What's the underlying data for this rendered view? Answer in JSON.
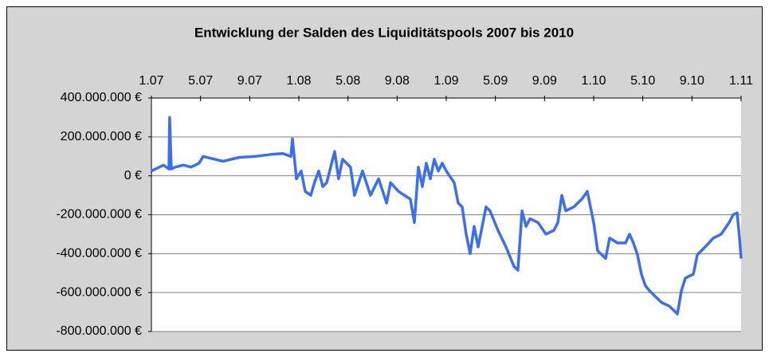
{
  "chart_data": {
    "type": "line",
    "title": "Entwicklung der Salden des Liquiditätspools 2007 bis 2010",
    "color": "#3b6ef2",
    "grid": true,
    "xlim": [
      2007,
      2011
    ],
    "xticks": [
      {
        "value": 2007,
        "label": "1.07"
      },
      {
        "value": 2007.3333,
        "label": "5.07"
      },
      {
        "value": 2007.6667,
        "label": "9.07"
      },
      {
        "value": 2008,
        "label": "1.08"
      },
      {
        "value": 2008.3333,
        "label": "5.08"
      },
      {
        "value": 2008.6667,
        "label": "9.08"
      },
      {
        "value": 2009,
        "label": "1.09"
      },
      {
        "value": 2009.3333,
        "label": "5.09"
      },
      {
        "value": 2009.6667,
        "label": "9.09"
      },
      {
        "value": 2010,
        "label": "1.10"
      },
      {
        "value": 2010.3333,
        "label": "5.10"
      },
      {
        "value": 2010.6667,
        "label": "9.10"
      },
      {
        "value": 2011,
        "label": "1.11"
      }
    ],
    "ylim": [
      -800000000,
      400000000
    ],
    "yticks": [
      {
        "value": 400000000,
        "label": "400.000.000 €"
      },
      {
        "value": 200000000,
        "label": "200.000.000 €"
      },
      {
        "value": 0,
        "label": "0 €"
      },
      {
        "value": -200000000,
        "label": "-200.000.000 €"
      },
      {
        "value": -400000000,
        "label": "-400.000.000 €"
      },
      {
        "value": -600000000,
        "label": "-600.000.000 €"
      },
      {
        "value": -800000000,
        "label": "-800.000.000 €"
      }
    ],
    "x": [
      2007.0,
      2007.054,
      2007.081,
      2007.119,
      2007.124,
      2007.135,
      2007.162,
      2007.216,
      2007.27,
      2007.324,
      2007.351,
      2007.432,
      2007.486,
      2007.595,
      2007.703,
      2007.811,
      2007.892,
      2007.946,
      2007.957,
      2007.984,
      2008.016,
      2008.043,
      2008.081,
      2008.108,
      2008.135,
      2008.162,
      2008.189,
      2008.243,
      2008.27,
      2008.297,
      2008.351,
      2008.378,
      2008.432,
      2008.486,
      2008.541,
      2008.595,
      2008.622,
      2008.676,
      2008.757,
      2008.784,
      2008.811,
      2008.838,
      2008.865,
      2008.892,
      2008.919,
      2008.946,
      2008.973,
      2009.0,
      2009.054,
      2009.081,
      2009.108,
      2009.135,
      2009.162,
      2009.189,
      2009.216,
      2009.27,
      2009.297,
      2009.351,
      2009.405,
      2009.459,
      2009.486,
      2009.514,
      2009.541,
      2009.568,
      2009.622,
      2009.676,
      2009.73,
      2009.757,
      2009.784,
      2009.811,
      2009.865,
      2009.919,
      2009.957,
      2010.0,
      2010.027,
      2010.081,
      2010.108,
      2010.162,
      2010.216,
      2010.243,
      2010.27,
      2010.297,
      2010.324,
      2010.351,
      2010.378,
      2010.405,
      2010.459,
      2010.514,
      2010.541,
      2010.568,
      2010.595,
      2010.622,
      2010.676,
      2010.703,
      2010.757,
      2010.811,
      2010.865,
      2010.919,
      2010.946,
      2010.973,
      2010.989,
      2011.0
    ],
    "values": [
      25000000,
      45000000,
      55000000,
      35000000,
      300000000,
      35000000,
      45000000,
      55000000,
      45000000,
      65000000,
      100000000,
      85000000,
      75000000,
      95000000,
      100000000,
      110000000,
      115000000,
      100000000,
      190000000,
      -15000000,
      25000000,
      -80000000,
      -100000000,
      -30000000,
      25000000,
      -55000000,
      -35000000,
      125000000,
      -15000000,
      85000000,
      45000000,
      -100000000,
      25000000,
      -100000000,
      -15000000,
      -140000000,
      -35000000,
      -80000000,
      -120000000,
      -240000000,
      45000000,
      -55000000,
      65000000,
      -15000000,
      85000000,
      25000000,
      65000000,
      25000000,
      -35000000,
      -140000000,
      -160000000,
      -300000000,
      -400000000,
      -260000000,
      -365000000,
      -160000000,
      -180000000,
      -280000000,
      -365000000,
      -465000000,
      -485000000,
      -180000000,
      -260000000,
      -220000000,
      -240000000,
      -300000000,
      -280000000,
      -240000000,
      -100000000,
      -180000000,
      -160000000,
      -120000000,
      -80000000,
      -240000000,
      -385000000,
      -425000000,
      -320000000,
      -345000000,
      -345000000,
      -300000000,
      -345000000,
      -405000000,
      -505000000,
      -565000000,
      -590000000,
      -610000000,
      -650000000,
      -670000000,
      -690000000,
      -710000000,
      -590000000,
      -525000000,
      -505000000,
      -405000000,
      -365000000,
      -320000000,
      -300000000,
      -240000000,
      -200000000,
      -190000000,
      -320000000,
      -425000000
    ]
  }
}
